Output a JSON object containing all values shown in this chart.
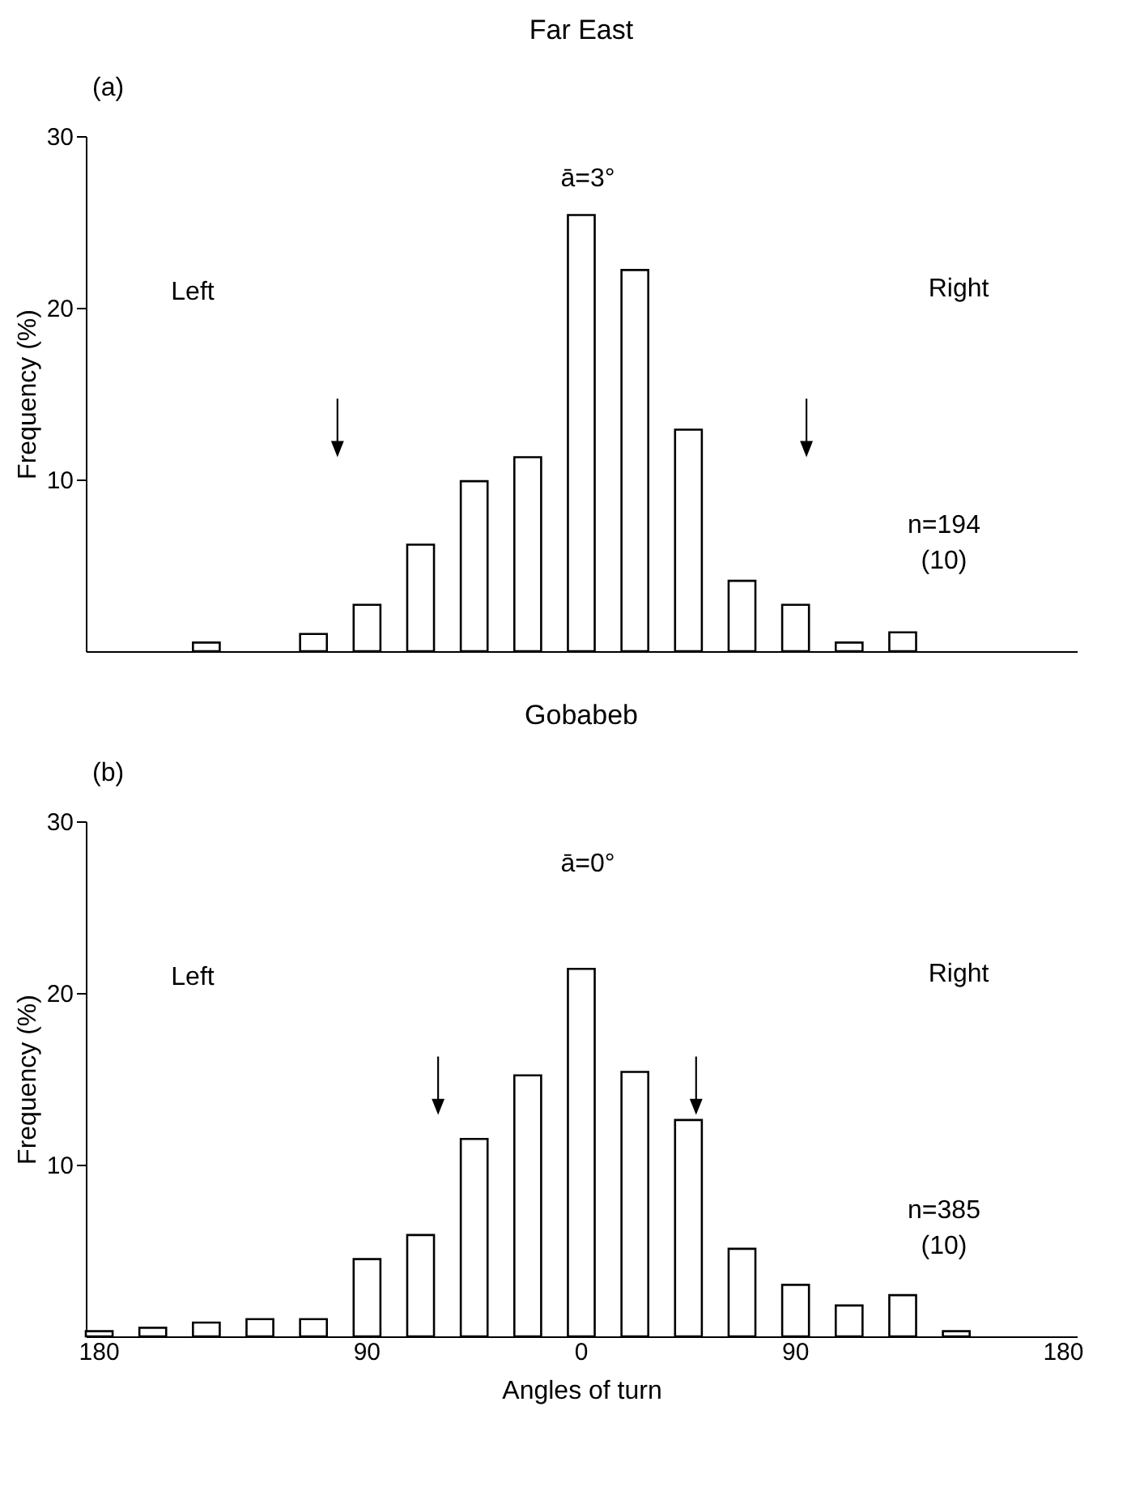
{
  "chart_data": [
    {
      "type": "bar",
      "title": "Far East",
      "ylabel": "Frequency (%)",
      "annotations": [
        "(a)",
        "ā=3°",
        "Left",
        "Right",
        "n=194",
        "(10)"
      ],
      "categories": [
        "180",
        null,
        null,
        null,
        null,
        "90",
        null,
        null,
        null,
        "0",
        null,
        null,
        null,
        "90",
        null,
        null,
        null,
        null,
        "180"
      ],
      "values": [
        null,
        null,
        0.5,
        null,
        1.0,
        2.7,
        6.2,
        9.9,
        11.3,
        25.4,
        22.2,
        12.9,
        4.1,
        2.7,
        0.5,
        1.1,
        null,
        null,
        null
      ],
      "color": "#ffffff",
      "ylim": [
        0,
        30
      ],
      "yticks": [
        10,
        20,
        30
      ],
      "grid": false,
      "tick_labels": "y"
    },
    {
      "type": "bar",
      "title": "Gobabeb",
      "ylabel": "Frequency (%)",
      "xlabel": "Angles of turn",
      "annotations": [
        "(b)",
        "ā=0°",
        "Left",
        "Right",
        "n=385",
        "(10)"
      ],
      "categories": [
        "180",
        null,
        null,
        null,
        null,
        "90",
        null,
        null,
        null,
        "0",
        null,
        null,
        null,
        "90",
        null,
        null,
        null,
        null,
        "180"
      ],
      "values": [
        0.3,
        0.5,
        0.8,
        1.0,
        1.0,
        4.5,
        5.9,
        11.5,
        15.2,
        21.4,
        15.4,
        12.6,
        5.1,
        3.0,
        1.8,
        2.4,
        0.3,
        null,
        null
      ],
      "color": "#ffffff",
      "ylim": [
        0,
        30
      ],
      "yticks": [
        10,
        20,
        30
      ],
      "grid": false
    }
  ]
}
